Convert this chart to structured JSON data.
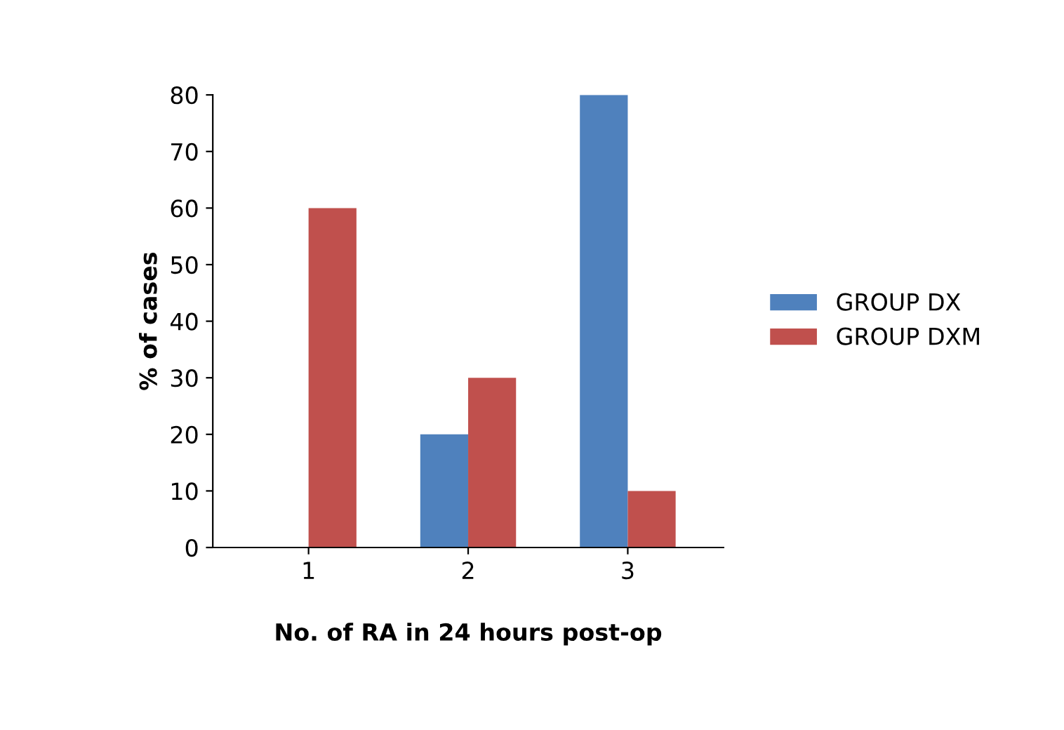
{
  "chart_data": {
    "type": "bar",
    "xlabel": "No. of RA in 24 hours post-op",
    "ylabel": "% of cases",
    "categories": [
      "1",
      "2",
      "3"
    ],
    "series": [
      {
        "name": "GROUP DX",
        "color": "#4f81bd",
        "values": [
          0,
          20,
          80
        ]
      },
      {
        "name": "GROUP DXM",
        "color": "#c0504d",
        "values": [
          60,
          30,
          10
        ]
      }
    ],
    "ylim": [
      0,
      80
    ],
    "yticks": [
      0,
      10,
      20,
      30,
      40,
      50,
      60,
      70,
      80
    ],
    "grid": false,
    "legend": "right"
  }
}
